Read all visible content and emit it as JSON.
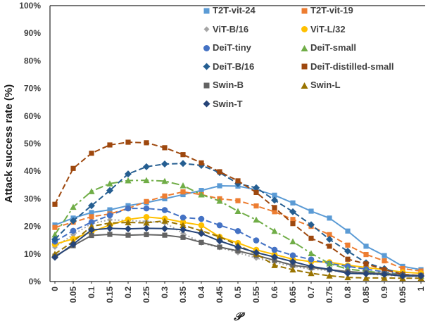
{
  "chart_data": {
    "type": "line",
    "title": "",
    "xlabel": "𝒫",
    "ylabel": "Attack success rate  (%)",
    "grid": false,
    "legend_position": "inside-top-right, two columns",
    "ylim": [
      0,
      100
    ],
    "y_tick_labels": [
      "0%",
      "10%",
      "20%",
      "30%",
      "40%",
      "50%",
      "60%",
      "70%",
      "80%",
      "90%",
      "100%"
    ],
    "x": [
      0,
      0.05,
      0.1,
      0.15,
      0.2,
      0.25,
      0.3,
      0.35,
      0.4,
      0.45,
      0.5,
      0.55,
      0.6,
      0.65,
      0.7,
      0.75,
      0.8,
      0.85,
      0.9,
      0.95,
      1
    ],
    "x_tick_labels": [
      "0",
      "0.05",
      "0.1",
      "0.15",
      "0.2",
      "0.25",
      "0.3",
      "0.35",
      "0.4",
      "0.45",
      "0.5",
      "0.55",
      "0.6",
      "0.65",
      "0.7",
      "0.75",
      "0.8",
      "0.85",
      "0.9",
      "0.95",
      "1"
    ],
    "series": [
      {
        "name": "T2T-vit-24",
        "color": "#5B9BD5",
        "marker": "square",
        "line": "solid",
        "values": [
          20.5,
          23,
          25,
          26,
          27.5,
          28.6,
          30,
          31.5,
          33,
          34.7,
          34.6,
          33.3,
          31.3,
          28.5,
          25.5,
          23,
          18.3,
          12.8,
          9.4,
          5.5,
          4.3
        ]
      },
      {
        "name": "T2T-vit-19",
        "color": "#ED7D31",
        "marker": "square",
        "line": "dash",
        "values": [
          19.6,
          21.5,
          23.5,
          24.5,
          26.5,
          29,
          31,
          32.5,
          31.5,
          30,
          29.3,
          27.4,
          25.3,
          22.5,
          20,
          17,
          13.2,
          9.8,
          7.5,
          4.7,
          3.8
        ]
      },
      {
        "name": "ViT-B/16",
        "color": "#A5A5A5",
        "marker": "diamond-small",
        "line": "dot",
        "values": [
          12.5,
          17,
          21,
          22.4,
          22.1,
          21.8,
          21.3,
          17.5,
          14,
          12.3,
          10.5,
          8.5,
          7,
          5.5,
          4.5,
          4,
          3.3,
          2.8,
          2.3,
          2,
          1.8
        ]
      },
      {
        "name": "ViT-L/32",
        "color": "#FFC000",
        "marker": "circle",
        "line": "solid",
        "values": [
          13.5,
          15.5,
          18,
          20.5,
          22.5,
          23.4,
          22.8,
          21.5,
          20.4,
          16.2,
          14,
          11.5,
          9.8,
          8.1,
          7.2,
          7,
          5.9,
          5.1,
          4.3,
          3.4,
          3
        ]
      },
      {
        "name": "DeiT-tiny",
        "color": "#4472C4",
        "marker": "circle",
        "line": "dash",
        "values": [
          14.5,
          18.4,
          21.5,
          24,
          26.5,
          26.5,
          25.9,
          23.2,
          22.7,
          20.4,
          18.3,
          14.9,
          11.5,
          9.5,
          8,
          6.5,
          5.5,
          4.5,
          3.5,
          2.5,
          2.2
        ]
      },
      {
        "name": "DeiT-small",
        "color": "#70AD47",
        "marker": "triangle",
        "line": "dashdot",
        "values": [
          17,
          27,
          32.7,
          35.5,
          36.6,
          36.7,
          36.4,
          34.8,
          31.5,
          29.2,
          25.5,
          22.4,
          18.3,
          14.5,
          10.2,
          6.5,
          4.5,
          3.8,
          3,
          2.5,
          2
        ]
      },
      {
        "name": "DeiT-B/16",
        "color": "#255E91",
        "marker": "diamond",
        "line": "dash",
        "values": [
          15.3,
          22,
          27.5,
          33,
          39,
          41.6,
          42.6,
          42.8,
          42.1,
          39.5,
          35.5,
          34,
          29.5,
          25.3,
          20.6,
          15.3,
          11,
          6.8,
          4.7,
          2.6,
          2
        ]
      },
      {
        "name": "DeiT-distilled-small",
        "color": "#9E480E",
        "marker": "square",
        "line": "dash",
        "values": [
          28,
          41,
          46.5,
          49.5,
          50.5,
          50.3,
          48.5,
          46,
          43,
          39.8,
          36.5,
          32.3,
          26.8,
          21,
          15.7,
          12.8,
          8.1,
          6.4,
          4.3,
          2.6,
          2.2
        ]
      },
      {
        "name": "Swin-B",
        "color": "#636363",
        "marker": "square",
        "line": "solid",
        "values": [
          9.2,
          13,
          16.7,
          17.1,
          16.8,
          17,
          16.8,
          16,
          14.2,
          12.5,
          11.1,
          9.5,
          7.7,
          5.9,
          5.1,
          4.3,
          3.6,
          3.2,
          2.9,
          2.3,
          2.2
        ]
      },
      {
        "name": "Swin-L",
        "color": "#997300",
        "marker": "triangle",
        "line": "dash",
        "values": [
          10,
          14.5,
          20,
          21.2,
          21.4,
          21.3,
          22,
          20.4,
          18.4,
          16.2,
          13.2,
          10,
          5.9,
          4.3,
          3,
          2.1,
          1.5,
          1.3,
          1.3,
          1.2,
          1.2
        ]
      },
      {
        "name": "Swin-T",
        "color": "#264478",
        "marker": "diamond",
        "line": "solid",
        "values": [
          8.8,
          13.5,
          18.7,
          19.3,
          19.1,
          19.3,
          19.2,
          18.8,
          17.4,
          14.7,
          12.5,
          10.5,
          8.9,
          7.2,
          5.5,
          4.4,
          3,
          2.8,
          2.6,
          2,
          2
        ]
      }
    ]
  }
}
